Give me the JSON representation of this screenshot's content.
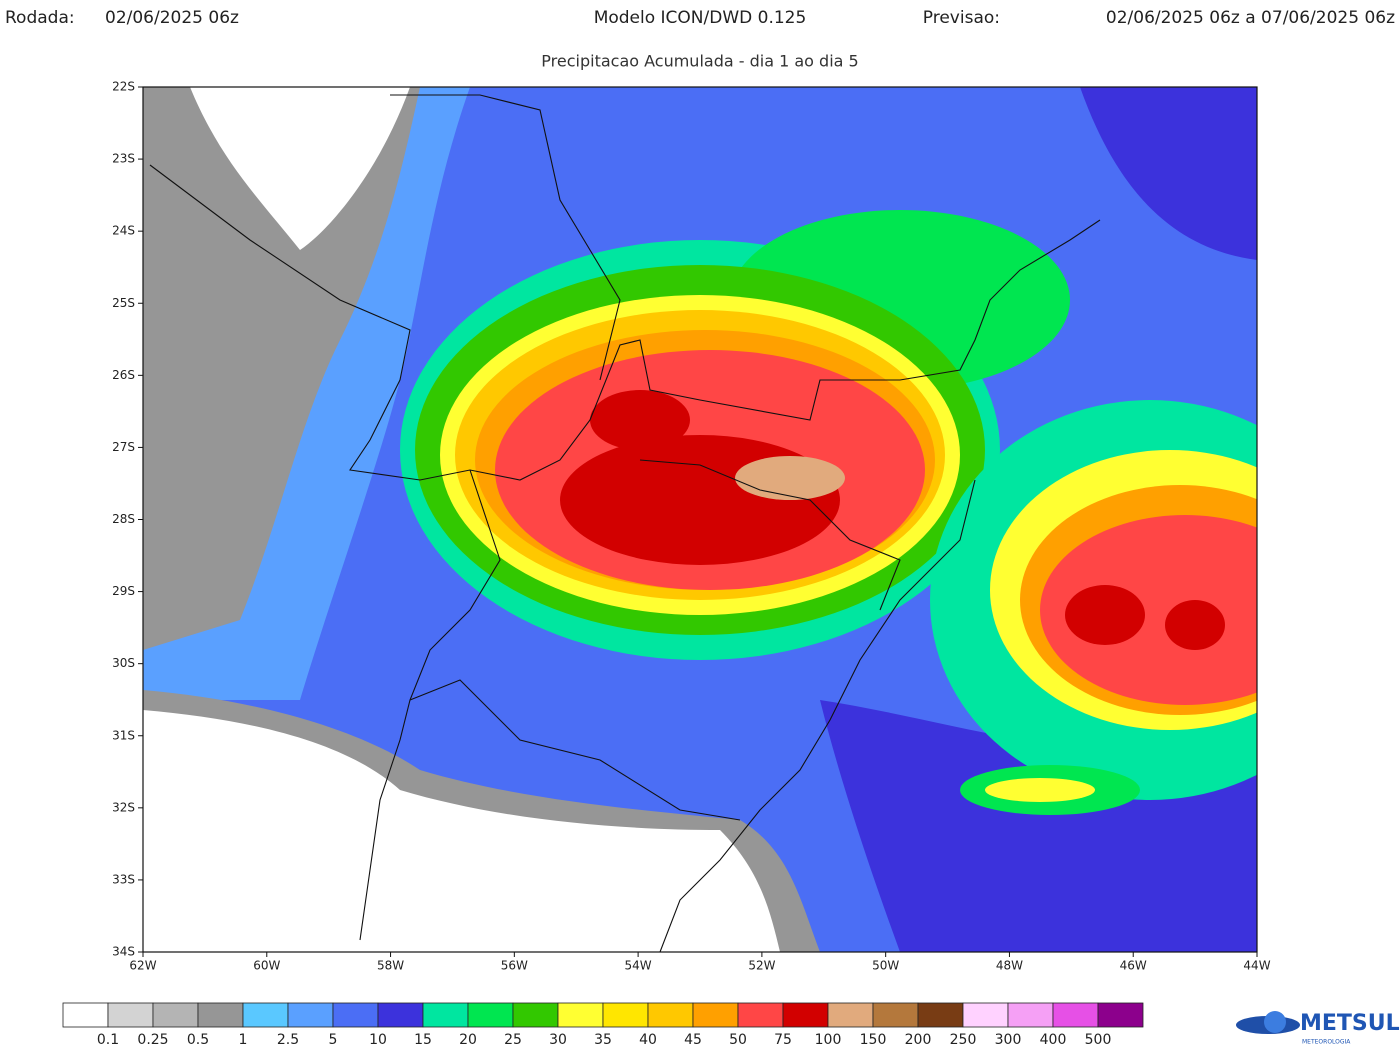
{
  "header": {
    "run_label": "Rodada:",
    "run": "02/06/2025 06z",
    "model": "Modelo ICON/DWD 0.125",
    "forecast_label": "Previsao:",
    "forecast": "02/06/2025 06z a 07/06/2025 06z"
  },
  "subtitle": "Precipitacao Acumulada - dia 1 ao dia 5",
  "map": {
    "lat_labels": [
      "22S",
      "23S",
      "24S",
      "25S",
      "26S",
      "27S",
      "28S",
      "29S",
      "30S",
      "31S",
      "32S",
      "33S",
      "34S"
    ],
    "lon_labels": [
      "62W",
      "60W",
      "58W",
      "56W",
      "54W",
      "52W",
      "50W",
      "48W",
      "46W",
      "44W"
    ]
  },
  "colorbar": {
    "levels": [
      0.1,
      0.25,
      0.5,
      1,
      2.5,
      5,
      10,
      15,
      20,
      25,
      30,
      35,
      40,
      45,
      50,
      75,
      100,
      150,
      200,
      250,
      300,
      400,
      500
    ],
    "colors": [
      "#ffffff",
      "#d3d3d3",
      "#b4b4b4",
      "#969696",
      "#5ac8ff",
      "#5aa0ff",
      "#4b6ef5",
      "#3c32dc",
      "#00e6a0",
      "#00e650",
      "#32c800",
      "#ffff32",
      "#ffe600",
      "#ffc800",
      "#ffa000",
      "#ff4646",
      "#d20000",
      "#e1aa7d",
      "#b4783c",
      "#783c14",
      "#ffd2ff",
      "#f5a0f5",
      "#e650e6",
      "#8c008c"
    ]
  },
  "logo": {
    "name": "METSUL",
    "tagline": "METEOROLOGIA"
  }
}
